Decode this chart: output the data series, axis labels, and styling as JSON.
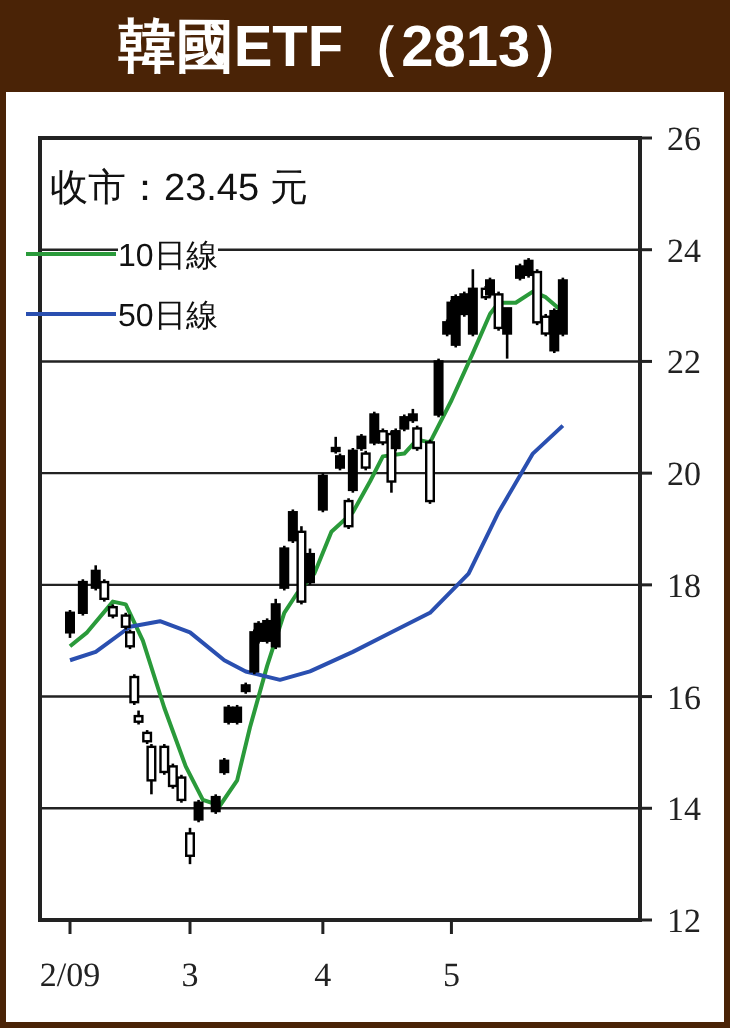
{
  "chart_data": {
    "type": "candlestick",
    "title": "韓國ETF（2813）",
    "annotations": [
      "收市：23.45 元"
    ],
    "x": [
      "2009-02-01",
      "2009-02-04",
      "2009-02-07",
      "2009-02-09",
      "2009-02-11",
      "2009-02-14",
      "2009-02-15",
      "2009-02-16",
      "2009-02-17",
      "2009-02-19",
      "2009-02-20",
      "2009-02-23",
      "2009-02-25",
      "2009-02-27",
      "2009-03-01",
      "2009-03-03",
      "2009-03-07",
      "2009-03-09",
      "2009-03-10",
      "2009-03-12",
      "2009-03-14",
      "2009-03-16",
      "2009-03-17",
      "2009-03-19",
      "2009-03-21",
      "2009-03-23",
      "2009-03-25",
      "2009-03-27",
      "2009-03-29",
      "2009-04-01",
      "2009-04-04",
      "2009-04-05",
      "2009-04-07",
      "2009-04-08",
      "2009-04-10",
      "2009-04-11",
      "2009-04-13",
      "2009-04-15",
      "2009-04-17",
      "2009-04-18",
      "2009-04-20",
      "2009-04-22",
      "2009-04-23",
      "2009-04-26",
      "2009-04-28",
      "2009-04-30",
      "2009-05-01",
      "2009-05-02",
      "2009-05-04",
      "2009-05-06",
      "2009-05-09",
      "2009-05-10",
      "2009-05-12",
      "2009-05-14",
      "2009-05-17",
      "2009-05-19",
      "2009-05-21",
      "2009-05-23",
      "2009-05-25",
      "2009-05-27"
    ],
    "ohlc": [
      [
        17.15,
        17.55,
        17.05,
        17.5
      ],
      [
        17.5,
        18.1,
        17.45,
        18.05
      ],
      [
        17.95,
        18.35,
        17.9,
        18.25
      ],
      [
        18.05,
        18.1,
        17.7,
        17.75
      ],
      [
        17.6,
        17.65,
        17.4,
        17.45
      ],
      [
        17.45,
        17.5,
        17.2,
        17.25
      ],
      [
        17.15,
        17.2,
        16.85,
        16.9
      ],
      [
        16.35,
        16.4,
        15.85,
        15.9
      ],
      [
        15.65,
        15.75,
        15.5,
        15.55
      ],
      [
        15.35,
        15.4,
        15.15,
        15.2
      ],
      [
        15.1,
        15.15,
        14.25,
        14.5
      ],
      [
        15.1,
        15.15,
        14.6,
        14.65
      ],
      [
        14.75,
        14.8,
        14.35,
        14.4
      ],
      [
        14.55,
        14.6,
        14.1,
        14.15
      ],
      [
        13.55,
        13.65,
        13.0,
        13.15
      ],
      [
        13.8,
        14.15,
        13.75,
        14.1
      ],
      [
        13.95,
        14.25,
        13.9,
        14.2
      ],
      [
        14.65,
        14.9,
        14.6,
        14.85
      ],
      [
        15.55,
        15.85,
        15.5,
        15.8
      ],
      [
        15.55,
        15.85,
        15.5,
        15.8
      ],
      [
        16.1,
        16.25,
        16.05,
        16.2
      ],
      [
        16.45,
        17.2,
        16.4,
        17.15
      ],
      [
        17.0,
        17.35,
        16.95,
        17.3
      ],
      [
        17.0,
        17.4,
        16.95,
        17.35
      ],
      [
        16.9,
        17.75,
        16.85,
        17.65
      ],
      [
        17.95,
        18.7,
        17.9,
        18.65
      ],
      [
        18.8,
        19.35,
        18.75,
        19.3
      ],
      [
        18.95,
        19.05,
        17.65,
        17.7
      ],
      [
        18.05,
        18.65,
        18.0,
        18.55
      ],
      [
        19.35,
        20.0,
        19.3,
        19.95
      ],
      [
        20.4,
        20.65,
        20.35,
        20.45
      ],
      [
        20.1,
        20.35,
        20.05,
        20.3
      ],
      [
        19.5,
        19.55,
        19.0,
        19.05
      ],
      [
        19.7,
        20.45,
        19.65,
        20.4
      ],
      [
        20.45,
        20.7,
        20.4,
        20.65
      ],
      [
        20.35,
        20.4,
        20.05,
        20.1
      ],
      [
        20.55,
        21.1,
        20.5,
        21.05
      ],
      [
        20.75,
        20.8,
        20.5,
        20.55
      ],
      [
        20.7,
        20.75,
        19.65,
        19.85
      ],
      [
        20.45,
        20.8,
        20.4,
        20.75
      ],
      [
        20.8,
        21.05,
        20.75,
        21.0
      ],
      [
        20.95,
        21.15,
        20.9,
        21.05
      ],
      [
        20.8,
        20.85,
        20.4,
        20.45
      ],
      [
        20.55,
        20.6,
        19.45,
        19.5
      ],
      [
        21.05,
        22.05,
        21.0,
        22.0
      ],
      [
        22.5,
        22.75,
        22.45,
        22.7
      ],
      [
        22.7,
        23.1,
        22.65,
        23.05
      ],
      [
        22.3,
        23.2,
        22.25,
        23.15
      ],
      [
        22.85,
        23.25,
        22.8,
        23.2
      ],
      [
        22.5,
        23.65,
        22.45,
        23.3
      ],
      [
        23.3,
        23.35,
        23.1,
        23.15
      ],
      [
        23.2,
        23.5,
        23.15,
        23.45
      ],
      [
        23.2,
        23.25,
        22.55,
        22.6
      ],
      [
        22.5,
        22.95,
        22.05,
        22.95
      ],
      [
        23.5,
        23.75,
        23.45,
        23.7
      ],
      [
        23.55,
        23.85,
        23.5,
        23.8
      ],
      [
        23.6,
        23.65,
        22.65,
        22.7
      ],
      [
        22.8,
        22.85,
        22.45,
        22.5
      ],
      [
        22.2,
        22.95,
        22.15,
        22.9
      ],
      [
        22.5,
        23.5,
        22.45,
        23.45
      ]
    ],
    "series": [
      {
        "name": "10日線",
        "type": "line",
        "color": "#2a9a3a",
        "x": [
          "2009-02-01",
          "2009-02-05",
          "2009-02-11",
          "2009-02-14",
          "2009-02-18",
          "2009-02-23",
          "2009-02-28",
          "2009-03-04",
          "2009-03-08",
          "2009-03-12",
          "2009-03-15",
          "2009-03-19",
          "2009-03-23",
          "2009-03-26",
          "2009-03-30",
          "2009-04-03",
          "2009-04-08",
          "2009-04-12",
          "2009-04-15",
          "2009-04-20",
          "2009-04-23",
          "2009-04-26",
          "2009-05-01",
          "2009-05-06",
          "2009-05-10",
          "2009-05-12",
          "2009-05-16",
          "2009-05-20",
          "2009-05-23",
          "2009-05-26",
          "2009-05-27"
        ],
        "values": [
          16.9,
          17.15,
          17.7,
          17.65,
          17.0,
          15.8,
          14.75,
          14.15,
          14.05,
          14.5,
          15.45,
          16.55,
          17.5,
          17.85,
          18.2,
          18.95,
          19.3,
          19.85,
          20.3,
          20.35,
          20.6,
          20.55,
          21.3,
          22.15,
          22.85,
          23.05,
          23.05,
          23.25,
          23.15,
          22.95,
          23.05
        ]
      },
      {
        "name": "50日線",
        "type": "line",
        "color": "#2a4fb0",
        "x": [
          "2009-02-01",
          "2009-02-07",
          "2009-02-15",
          "2009-02-22",
          "2009-03-01",
          "2009-03-09",
          "2009-03-14",
          "2009-03-22",
          "2009-03-29",
          "2009-04-08",
          "2009-04-17",
          "2009-04-26",
          "2009-05-05",
          "2009-05-12",
          "2009-05-20",
          "2009-05-27"
        ],
        "values": [
          16.65,
          16.8,
          17.25,
          17.35,
          17.15,
          16.65,
          16.45,
          16.3,
          16.45,
          16.8,
          17.15,
          17.5,
          18.2,
          19.3,
          20.35,
          20.85
        ]
      }
    ],
    "xlim": [
      "2009-01-25",
      "2009-06-14"
    ],
    "xticks": [
      {
        "value": "2009-02-01",
        "label": "2/09"
      },
      {
        "value": "2009-03-01",
        "label": "3"
      },
      {
        "value": "2009-04-01",
        "label": "4"
      },
      {
        "value": "2009-05-01",
        "label": "5"
      }
    ],
    "ylim": [
      12,
      26
    ],
    "yticks": [
      12,
      14,
      16,
      18,
      20,
      22,
      24,
      26
    ],
    "grid": "y",
    "legend": "top left"
  }
}
